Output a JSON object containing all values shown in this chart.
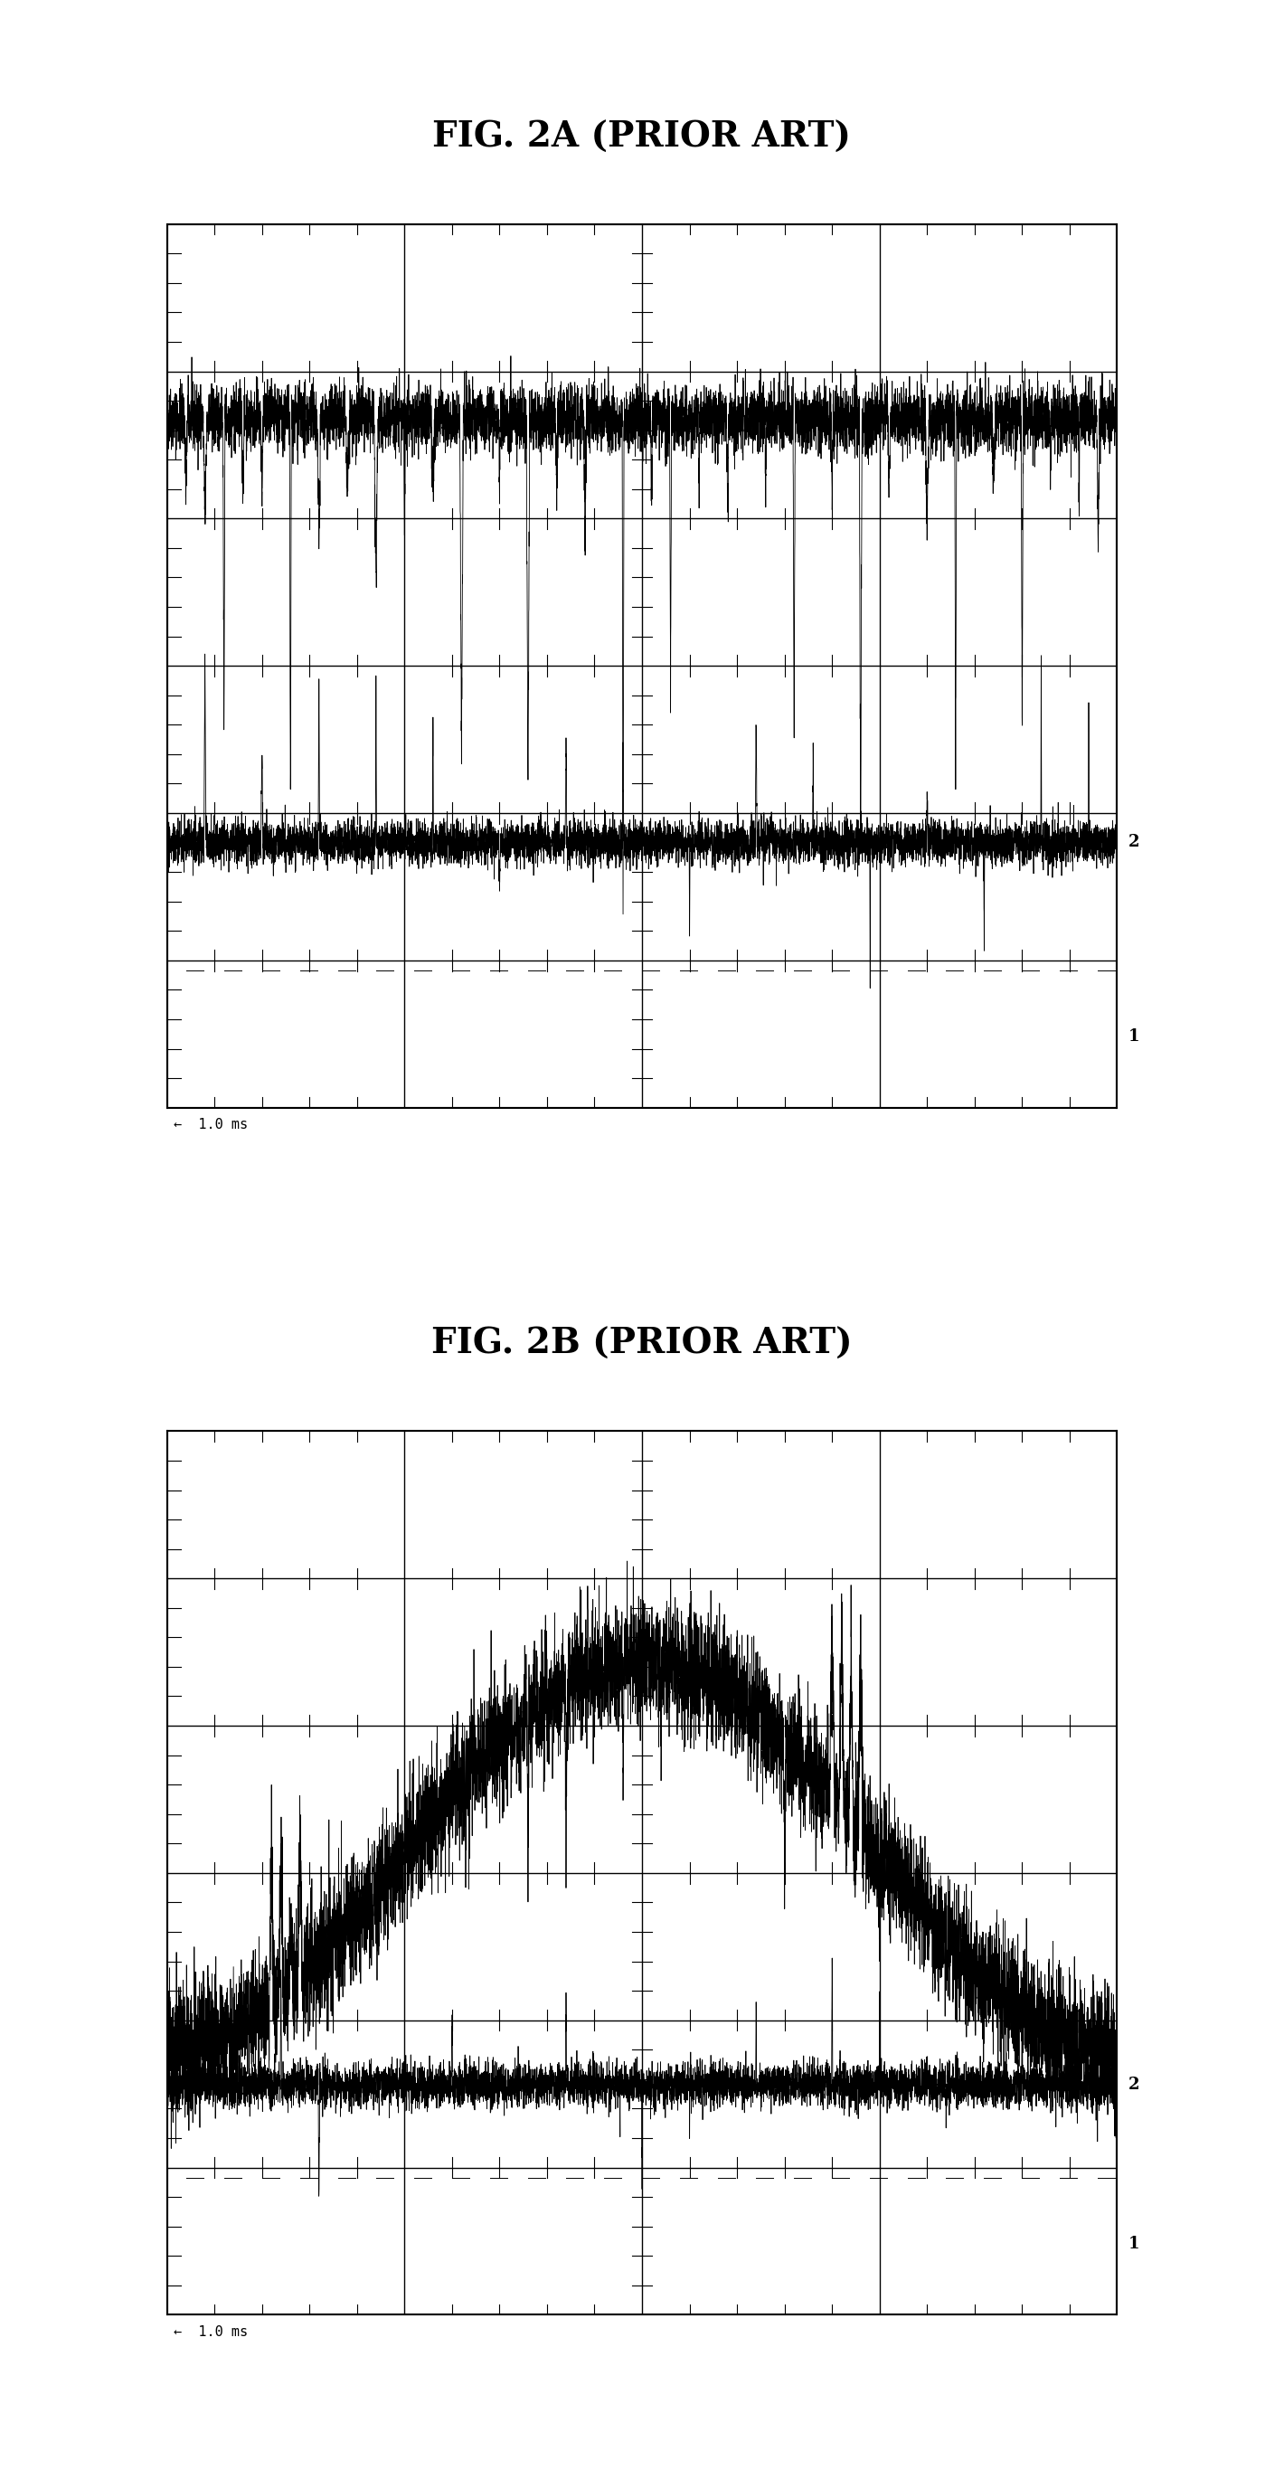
{
  "fig_width": 14.2,
  "fig_height": 27.52,
  "bg_color": "#ffffff",
  "title_2a": "FIG. 2A (PRIOR ART)",
  "title_2b": "FIG. 2B (PRIOR ART)",
  "title_fontsize": 28,
  "label_1ms": "←  1.0 ms",
  "label_2": "2",
  "label_1": "1",
  "grid_color": "#000000",
  "signal_color": "#000000",
  "n_cols": 4,
  "n_rows": 6
}
